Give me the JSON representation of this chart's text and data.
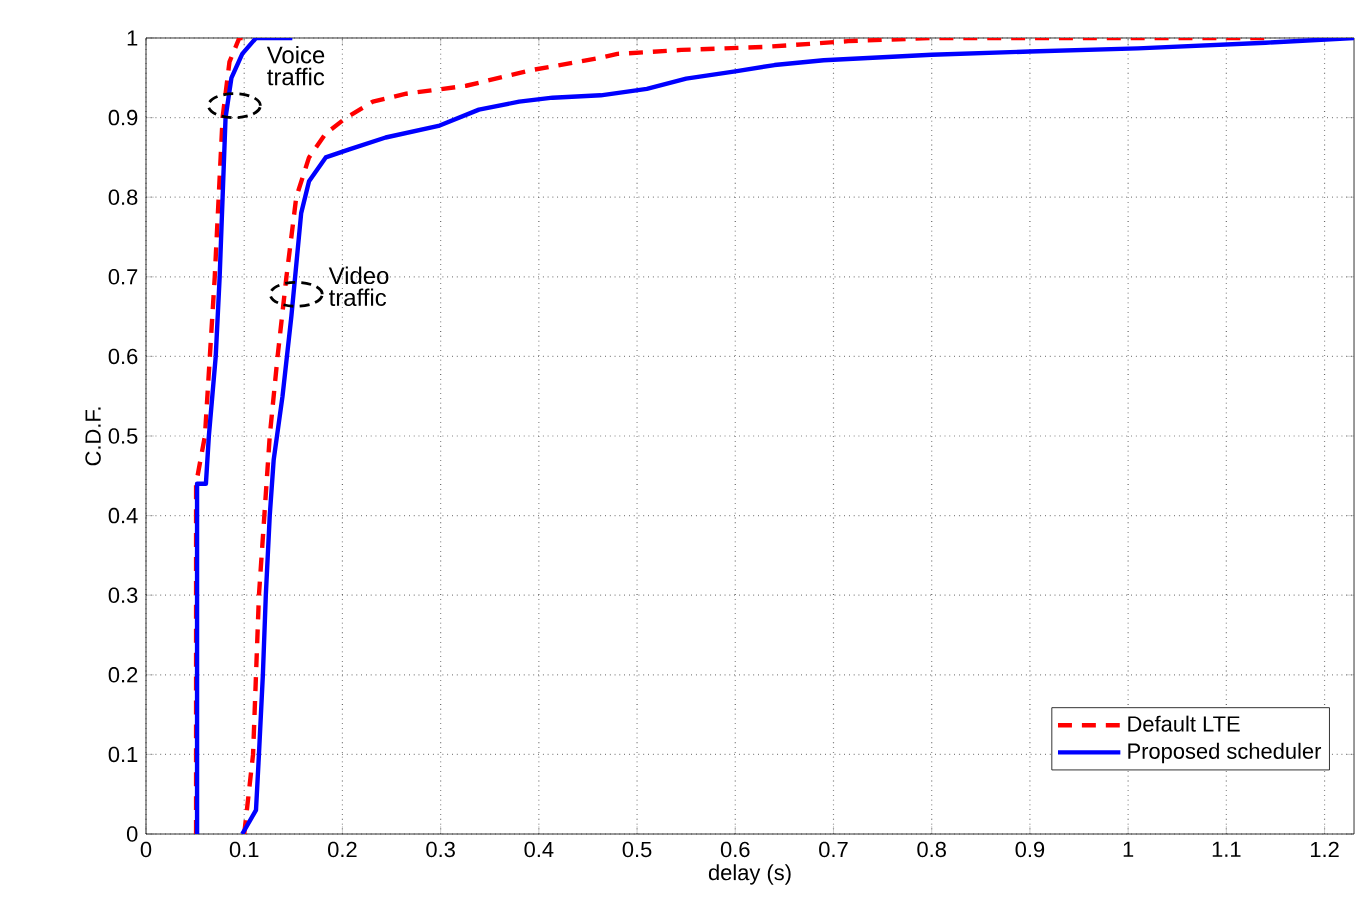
{
  "chart_data": {
    "type": "line",
    "xlabel": "delay (s)",
    "ylabel": "C.D.F.",
    "xlim": [
      0,
      1.23
    ],
    "ylim": [
      0,
      1
    ],
    "xticks": [
      0,
      0.1,
      0.2,
      0.3,
      0.4,
      0.5,
      0.6,
      0.7,
      0.8,
      0.9,
      1,
      1.1,
      1.2
    ],
    "yticks": [
      0,
      0.1,
      0.2,
      0.3,
      0.4,
      0.5,
      0.6,
      0.7,
      0.8,
      0.9,
      1
    ],
    "grid": true,
    "legend": "bottom right",
    "series": [
      {
        "name": "Default LTE",
        "color": "#ff0000",
        "line_style": "dashed",
        "x": [
          0.1,
          0.109,
          0.115,
          0.126,
          0.134,
          0.143,
          0.153,
          0.166,
          0.183,
          0.204,
          0.231,
          0.265,
          0.326,
          0.394,
          0.462,
          0.48,
          0.545,
          0.633,
          0.715,
          0.8,
          1.14
        ],
        "values": [
          0,
          0.1,
          0.3,
          0.5,
          0.6,
          0.7,
          0.8,
          0.85,
          0.88,
          0.9,
          0.92,
          0.93,
          0.94,
          0.96,
          0.975,
          0.98,
          0.985,
          0.989,
          0.996,
          1.0,
          1.0
        ]
      },
      {
        "name": "Proposed scheduler",
        "color": "#0000ff",
        "line_style": "solid",
        "x": [
          0.098,
          0.112,
          0.115,
          0.119,
          0.122,
          0.126,
          0.13,
          0.139,
          0.148,
          0.158,
          0.166,
          0.183,
          0.207,
          0.244,
          0.299,
          0.339,
          0.38,
          0.414,
          0.463,
          0.51,
          0.55,
          0.6,
          0.64,
          0.69,
          0.8,
          0.9,
          1.01,
          1.14,
          1.23
        ],
        "values": [
          0,
          0.03,
          0.1,
          0.2,
          0.3,
          0.4,
          0.47,
          0.55,
          0.65,
          0.78,
          0.82,
          0.85,
          0.86,
          0.875,
          0.89,
          0.91,
          0.92,
          0.925,
          0.928,
          0.936,
          0.949,
          0.958,
          0.966,
          0.972,
          0.979,
          0.983,
          0.987,
          0.994,
          1.0
        ]
      },
      {
        "color": "#ff0000",
        "line_style": "dashed",
        "x": [
          0.051,
          0.051,
          0.06,
          0.07,
          0.078,
          0.085,
          0.095,
          0.1
        ],
        "values": [
          0,
          0.44,
          0.5,
          0.7,
          0.9,
          0.97,
          1.0,
          1.0
        ]
      },
      {
        "color": "#0000ff",
        "line_style": "solid",
        "x": [
          0.052,
          0.052,
          0.061,
          0.064,
          0.071,
          0.075,
          0.078,
          0.081,
          0.087,
          0.098,
          0.112,
          0.149
        ],
        "values": [
          0,
          0.44,
          0.44,
          0.5,
          0.6,
          0.7,
          0.8,
          0.9,
          0.95,
          0.98,
          1.0,
          1.0
        ]
      }
    ],
    "annotations": [
      {
        "text": "Voice traffic",
        "x": 0.09,
        "y": 0.915
      },
      {
        "text": "Video traffic",
        "x": 0.153,
        "y": 0.678
      }
    ]
  }
}
